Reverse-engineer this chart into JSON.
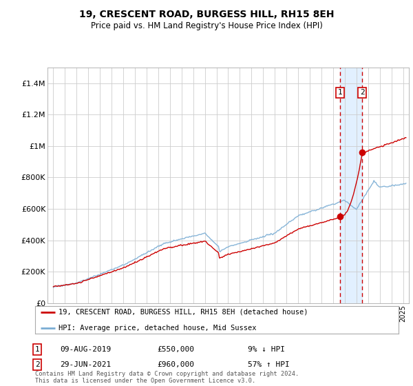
{
  "title": "19, CRESCENT ROAD, BURGESS HILL, RH15 8EH",
  "subtitle": "Price paid vs. HM Land Registry's House Price Index (HPI)",
  "ylabel_ticks": [
    "£0",
    "£200K",
    "£400K",
    "£600K",
    "£800K",
    "£1M",
    "£1.2M",
    "£1.4M"
  ],
  "ylim": [
    0,
    1500000
  ],
  "yticks": [
    0,
    200000,
    400000,
    600000,
    800000,
    1000000,
    1200000,
    1400000
  ],
  "xlim_start": 1994.5,
  "xlim_end": 2025.5,
  "transaction1": {
    "label": "1",
    "date_str": "09-AUG-2019",
    "price": 550000,
    "hpi_pct": "9% ↓ HPI",
    "x": 2019.6
  },
  "transaction2": {
    "label": "2",
    "date_str": "29-JUN-2021",
    "price": 960000,
    "hpi_pct": "57% ↑ HPI",
    "x": 2021.5
  },
  "legend_line1": "19, CRESCENT ROAD, BURGESS HILL, RH15 8EH (detached house)",
  "legend_line2": "HPI: Average price, detached house, Mid Sussex",
  "footer": "Contains HM Land Registry data © Crown copyright and database right 2024.\nThis data is licensed under the Open Government Licence v3.0.",
  "line_color_red": "#cc0000",
  "line_color_blue": "#7aadd4",
  "bg_color": "#ffffff",
  "grid_color": "#cccccc",
  "highlight_bg": "#ddeeff",
  "marker_box_color": "#cc0000"
}
